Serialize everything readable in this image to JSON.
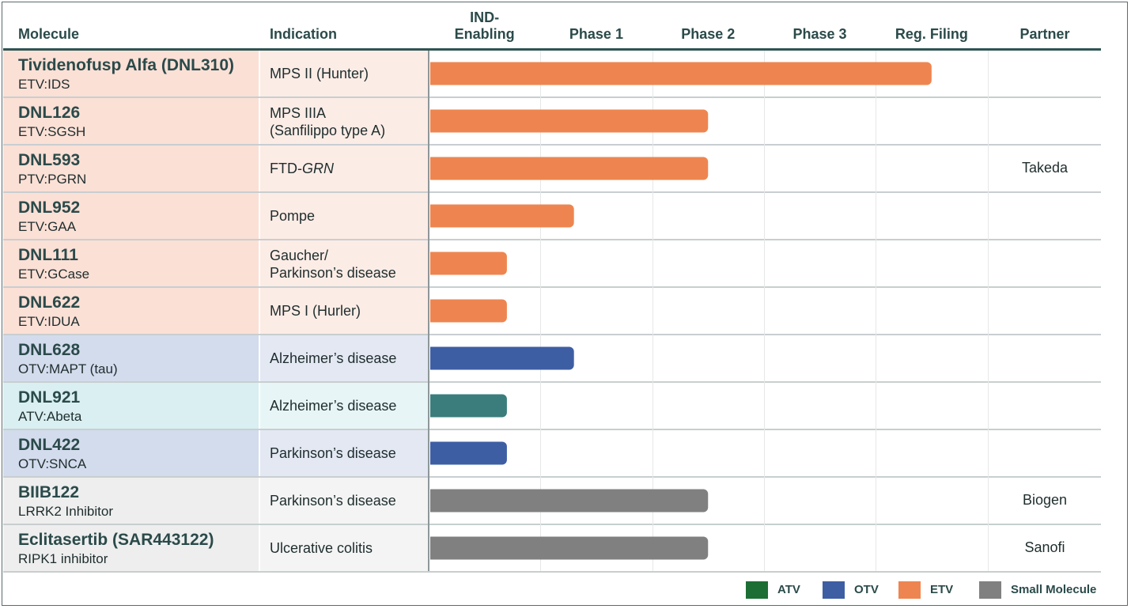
{
  "headers": {
    "molecule": "Molecule",
    "indication": "Indication",
    "partner": "Partner",
    "phases": [
      "IND-\nEnabling",
      "Phase 1",
      "Phase 2",
      "Phase 3",
      "Reg. Filing"
    ]
  },
  "colors": {
    "ETV": "#ee8550",
    "OTV": "#3e5ea4",
    "ATV_bar": "#3a7d7c",
    "ATV_legend": "#1c6e34",
    "Small Molecule": "#808080",
    "row_etv_mol": "#fbe0d6",
    "row_etv_ind": "#fcece6",
    "row_otv_mol": "#d3dced",
    "row_otv_ind": "#e3e8f3",
    "row_atv_mol": "#d9eff2",
    "row_atv_ind": "#e8f5f6",
    "row_sm_mol": "#eeeeee",
    "row_sm_ind": "#f4f4f4"
  },
  "chart_data": {
    "type": "bar",
    "orientation": "horizontal",
    "x_categories": [
      "IND-Enabling",
      "Phase 1",
      "Phase 2",
      "Phase 3",
      "Reg. Filing"
    ],
    "xlim": [
      0,
      5
    ],
    "grid": true,
    "legend_position": "bottom-right",
    "rows": [
      {
        "name": "Tividenofusp Alfa (DNL310)",
        "target": "ETV:IDS",
        "indication": [
          "MPS II (Hunter)"
        ],
        "platform": "ETV",
        "progress": 4.5,
        "partner": ""
      },
      {
        "name": "DNL126",
        "target": "ETV:SGSH",
        "indication": [
          "MPS IIIA",
          "(Sanfilippo type A)"
        ],
        "platform": "ETV",
        "progress": 2.5,
        "partner": ""
      },
      {
        "name": "DNL593",
        "target": "PTV:PGRN",
        "indication": [
          "FTD-GRN"
        ],
        "platform": "ETV",
        "progress": 2.5,
        "partner": "Takeda"
      },
      {
        "name": "DNL952",
        "target": "ETV:GAA",
        "indication": [
          "Pompe"
        ],
        "platform": "ETV",
        "progress": 1.3,
        "partner": ""
      },
      {
        "name": "DNL111",
        "target": "ETV:GCase",
        "indication": [
          "Gaucher/",
          "Parkinson’s disease"
        ],
        "platform": "ETV",
        "progress": 0.7,
        "partner": ""
      },
      {
        "name": "DNL622",
        "target": "ETV:IDUA",
        "indication": [
          "MPS I (Hurler)"
        ],
        "platform": "ETV",
        "progress": 0.7,
        "partner": ""
      },
      {
        "name": "DNL628",
        "target": "OTV:MAPT (tau)",
        "indication": [
          "Alzheimer’s disease"
        ],
        "platform": "OTV",
        "progress": 1.3,
        "partner": ""
      },
      {
        "name": "DNL921",
        "target": "ATV:Abeta",
        "indication": [
          "Alzheimer’s disease"
        ],
        "platform": "ATV",
        "progress": 0.7,
        "partner": ""
      },
      {
        "name": "DNL422",
        "target": "OTV:SNCA",
        "indication": [
          "Parkinson’s disease"
        ],
        "platform": "OTV",
        "progress": 0.7,
        "partner": ""
      },
      {
        "name": "BIIB122",
        "target": "LRRK2 Inhibitor",
        "indication": [
          "Parkinson’s disease"
        ],
        "platform": "Small Molecule",
        "progress": 2.5,
        "partner": "Biogen"
      },
      {
        "name": "Eclitasertib (SAR443122)",
        "target": "RIPK1 inhibitor",
        "indication": [
          "Ulcerative colitis"
        ],
        "platform": "Small Molecule",
        "progress": 2.5,
        "partner": "Sanofi"
      }
    ],
    "legend": [
      {
        "label": "ATV",
        "platform": "ATV"
      },
      {
        "label": "OTV",
        "platform": "OTV"
      },
      {
        "label": "ETV",
        "platform": "ETV"
      },
      {
        "label": "Small Molecule",
        "platform": "Small Molecule"
      }
    ]
  }
}
